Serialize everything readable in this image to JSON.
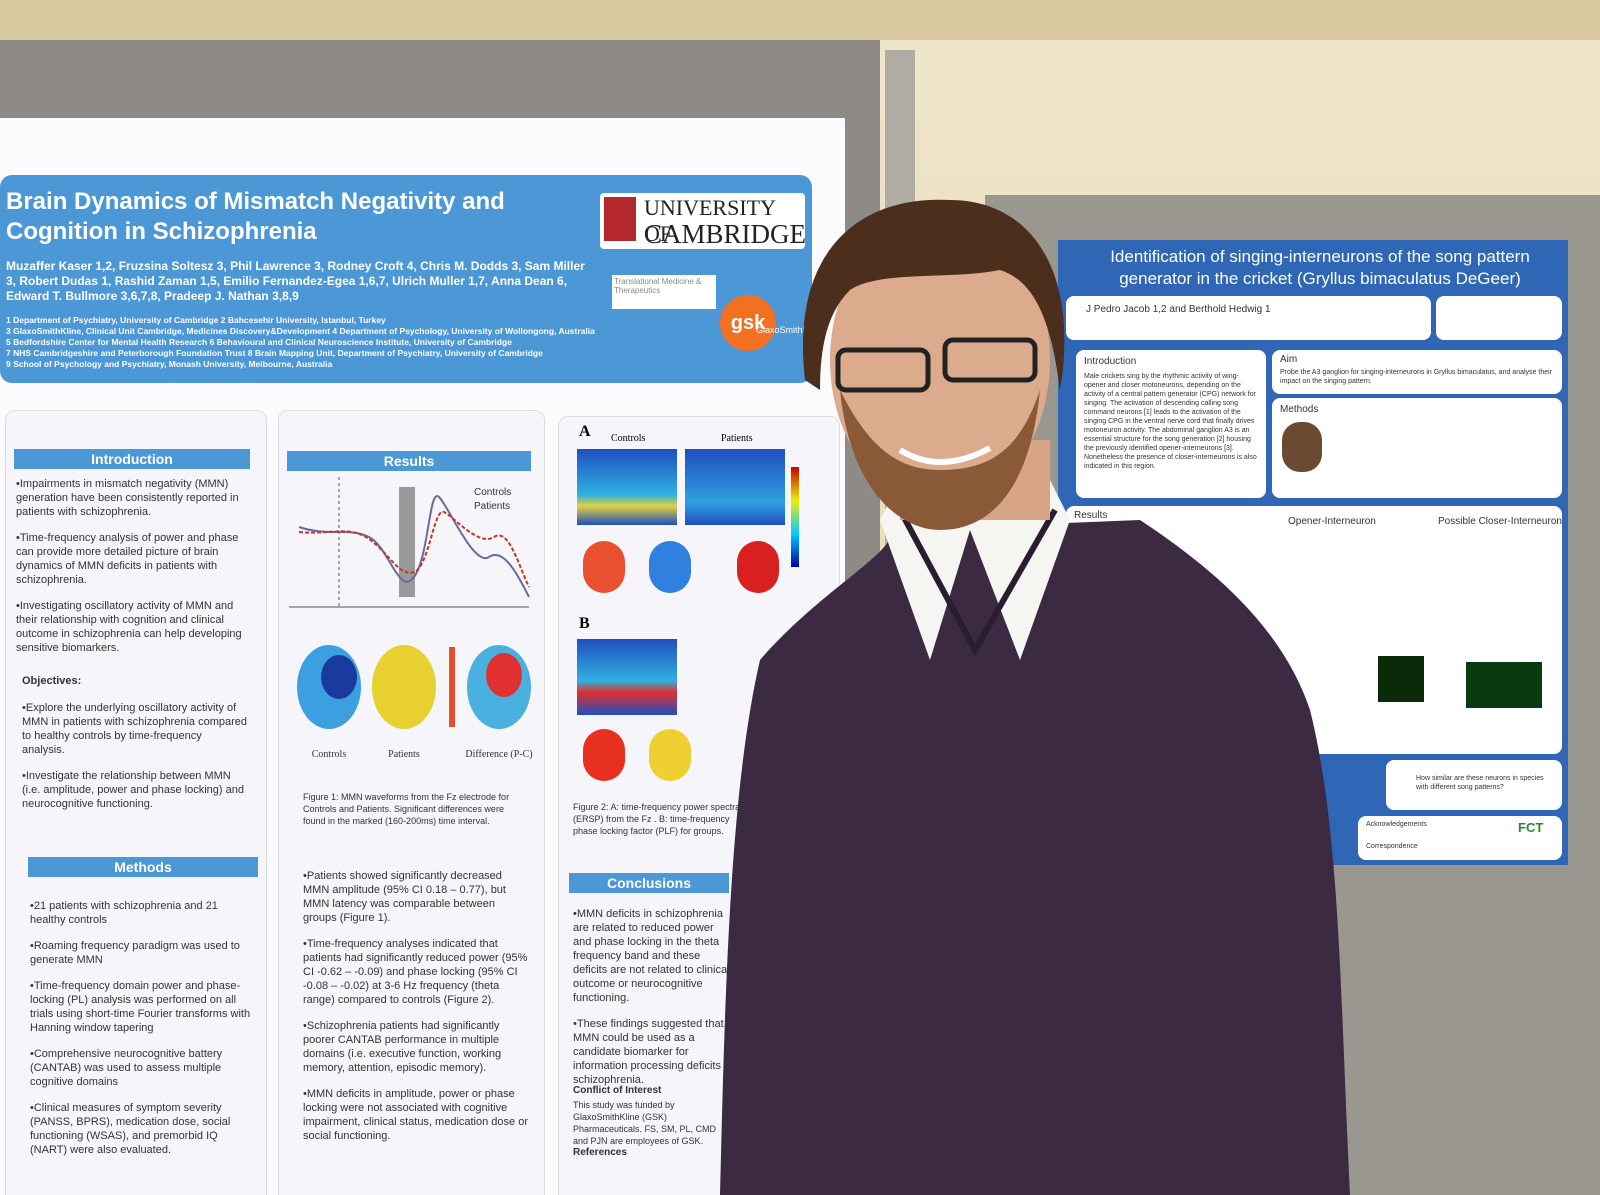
{
  "left_poster": {
    "title": "Brain Dynamics of Mismatch Negativity and Cognition in Schizophrenia",
    "institution": [
      "UNIVERSITY OF",
      "CAMBRIDGE"
    ],
    "authors": "Muzaffer Kaser 1,2, Fruzsina Soltesz 3, Phil Lawrence 3, Rodney Croft 4, Chris M. Dodds 3, Sam Miller 3, Robert Dudas 1, Rashid Zaman 1,5, Emilio Fernandez-Egea 1,6,7, Ulrich Muller 1,7, Anna Dean 6, Edward T. Bullmore 3,6,7,8, Pradeep J. Nathan 3,8,9",
    "affiliations": [
      "1 Department of Psychiatry, University of Cambridge 2 Bahcesehir University, Istanbul, Turkey",
      "3 GlaxoSmithKline, Clinical Unit Cambridge, Medicines Discovery&Development 4 Department of Psychology, University of Wollongong, Australia",
      "5 Bedfordshire Center for Mental Health Research 6 Behavioural and Clinical Neuroscience Institute, University of Cambridge",
      "7 NHS Cambridgeshire and Peterborough Foundation Trust 8 Brain Mapping Unit, Department of Psychiatry, University of Cambridge",
      "9 School of Psychology and Psychiatry, Monash University, Melbourne, Australia"
    ],
    "logos": [
      "Translational Medicine & Therapeutics",
      "gsk",
      "GlaxoSmithKline"
    ],
    "introduction": {
      "heading": "Introduction",
      "bullets": [
        "Impairments in mismatch negativity (MMN) generation have been consistently reported in patients with schizophrenia.",
        "Time-frequency analysis of power and phase can provide more detailed picture of brain dynamics of MMN deficits in patients with schizophrenia.",
        "Investigating oscillatory activity of MMN and their relationship with cognition and clinical outcome in schizophrenia can help developing sensitive biomarkers."
      ]
    },
    "objectives": {
      "heading": "Objectives:",
      "bullets": [
        "Explore the underlying oscillatory activity of MMN in patients with schizophrenia compared to healthy controls by time-frequency analysis.",
        "Investigate the relationship between MMN (i.e. amplitude, power and phase locking) and neurocognitive functioning."
      ]
    },
    "methods": {
      "heading": "Methods",
      "bullets": [
        "21 patients with schizophrenia and 21 healthy controls",
        "Roaming frequency paradigm was used to generate MMN",
        "Time-frequency domain power and phase-locking (PL) analysis was performed on all trials using short-time Fourier transforms with Hanning window tapering",
        "Comprehensive neurocognitive battery (CANTAB) was used to assess multiple cognitive domains",
        "Clinical measures of symptom severity (PANSS, BPRS), medication dose, social functioning (WSAS), and premorbid IQ (NART) were also evaluated."
      ]
    },
    "results": {
      "heading": "Results",
      "legend": [
        "Controls",
        "Patients"
      ],
      "figure_caption": "Figure 1: MMN waveforms from the Fz electrode for Controls and Patients. Significant differences were found in the marked (160-200ms) time interval.",
      "map_labels": [
        "Controls",
        "Patients",
        "Difference (P-C)"
      ],
      "bullets": [
        "Patients showed significantly decreased MMN amplitude (95% CI 0.18 – 0.77), but MMN latency was comparable between groups (Figure 1).",
        "Time-frequency analyses indicated that patients had significantly reduced power (95% CI -0.62 – -0.09) and phase locking (95% CI -0.08 – -0.02) at 3-6 Hz frequency (theta range) compared to controls (Figure 2).",
        "Schizophrenia patients had significantly poorer CANTAB performance in multiple domains (i.e. executive function, working memory, attention, episodic memory).",
        "MMN deficits in amplitude, power or phase locking were not associated with cognitive impairment, clinical status, medication dose or social functioning."
      ]
    },
    "figure2": {
      "panels": [
        "A",
        "B"
      ],
      "column_labels": [
        "Controls",
        "Patients"
      ],
      "caption": "Figure 2: A: time-frequency power spectra (ERSP) from the Fz . B: time-frequency phase locking factor (PLF) for groups."
    },
    "conclusions": {
      "heading": "Conclusions",
      "bullets": [
        "MMN deficits in schizophrenia are related to reduced power and phase locking in the theta frequency band and these deficits are not related to clinical outcome or neurocognitive functioning.",
        "These findings suggested that MMN could be used as a candidate biomarker for information processing deficits in schizophrenia."
      ],
      "conflict_heading": "Conflict of Interest",
      "conflict": "This study was funded by GlaxoSmithKline (GSK) Pharmaceuticals. FS, SM, PL, CMD and PJN are employees of GSK.",
      "references_heading": "References"
    }
  },
  "right_poster": {
    "title": "Identification of singing-interneurons of the song pattern generator in the cricket (Gryllus bimaculatus DeGeer)",
    "authors": "J Pedro Jacob 1,2 and Berthold Hedwig 1",
    "introduction": {
      "heading": "Introduction",
      "text": "Male crickets sing by the rhythmic activity of wing-opener and closer motoneurons, depending on the activity of a central pattern generator (CPG) network for singing. The activation of descending calling song command neurons [1] leads to the activation of the singing CPG in the ventral nerve cord that finally drives motoneuron activity. The abdominal ganglion A3 is an essential structure for the song generation [2] housing the previously identified opener-interneurons [3]. Nonetheless the presence of closer-interneurons is also indicated in this region."
    },
    "aim": {
      "heading": "Aim",
      "text": "Probe the A3 ganglion for singing-interneurons in Gryllus bimaculatus, and analyse their impact on the singing pattern."
    },
    "methods_heading": "Methods",
    "results": {
      "heading": "Results",
      "columns": [
        "Opener-Interneuron",
        "Possible Closer-Interneuron"
      ]
    },
    "questions": [
      "How similar are these neurons in species with different song patterns?"
    ],
    "acknowledgements_heading": "Acknowledgements",
    "correspondence_heading": "Correspondence",
    "logo": "FCT"
  }
}
